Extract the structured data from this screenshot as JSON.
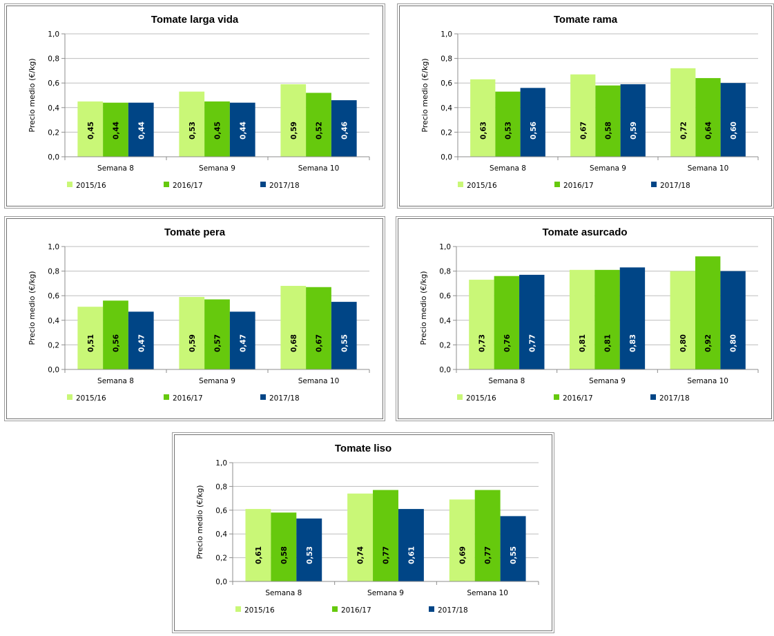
{
  "colors": {
    "2015/16": "#c9f777",
    "2016/17": "#66c90d",
    "2017/18": "#004586"
  },
  "chart_data": [
    {
      "type": "bar",
      "title": "Tomate larga vida",
      "ylabel": "Precio medio (€/kg)",
      "ylim": [
        0,
        1.0
      ],
      "yticks": [
        "0,0",
        "0,2",
        "0,4",
        "0,6",
        "0,8",
        "1,0"
      ],
      "categories": [
        "Semana 8",
        "Semana 9",
        "Semana 10"
      ],
      "series": [
        {
          "name": "2015/16",
          "values": [
            0.45,
            0.53,
            0.59
          ],
          "labels": [
            "0,45",
            "0,53",
            "0,59"
          ]
        },
        {
          "name": "2016/17",
          "values": [
            0.44,
            0.45,
            0.52
          ],
          "labels": [
            "0,44",
            "0,45",
            "0,52"
          ]
        },
        {
          "name": "2017/18",
          "values": [
            0.44,
            0.44,
            0.46
          ],
          "labels": [
            "0,44",
            "0,44",
            "0,46"
          ]
        }
      ],
      "grid": true,
      "legend": "bottom"
    },
    {
      "type": "bar",
      "title": "Tomate rama",
      "ylabel": "Precio medio (€/kg)",
      "ylim": [
        0,
        1.0
      ],
      "yticks": [
        "0,0",
        "0,2",
        "0,4",
        "0,6",
        "0,8",
        "1,0"
      ],
      "categories": [
        "Semana 8",
        "Semana 9",
        "Semana 10"
      ],
      "series": [
        {
          "name": "2015/16",
          "values": [
            0.63,
            0.67,
            0.72
          ],
          "labels": [
            "0,63",
            "0,67",
            "0,72"
          ]
        },
        {
          "name": "2016/17",
          "values": [
            0.53,
            0.58,
            0.64
          ],
          "labels": [
            "0,53",
            "0,58",
            "0,64"
          ]
        },
        {
          "name": "2017/18",
          "values": [
            0.56,
            0.59,
            0.6
          ],
          "labels": [
            "0,56",
            "0,59",
            "0,60"
          ]
        }
      ],
      "grid": true,
      "legend": "bottom"
    },
    {
      "type": "bar",
      "title": "Tomate pera",
      "ylabel": "Precio medio (€/kg)",
      "ylim": [
        0,
        1.0
      ],
      "yticks": [
        "0,0",
        "0,2",
        "0,4",
        "0,6",
        "0,8",
        "1,0"
      ],
      "categories": [
        "Semana 8",
        "Semana 9",
        "Semana 10"
      ],
      "series": [
        {
          "name": "2015/16",
          "values": [
            0.51,
            0.59,
            0.68
          ],
          "labels": [
            "0,51",
            "0,59",
            "0,68"
          ]
        },
        {
          "name": "2016/17",
          "values": [
            0.56,
            0.57,
            0.67
          ],
          "labels": [
            "0,56",
            "0,57",
            "0,67"
          ]
        },
        {
          "name": "2017/18",
          "values": [
            0.47,
            0.47,
            0.55
          ],
          "labels": [
            "0,47",
            "0,47",
            "0,55"
          ]
        }
      ],
      "grid": true,
      "legend": "bottom"
    },
    {
      "type": "bar",
      "title": "Tomate asurcado",
      "ylabel": "Precio medio (€/kg)",
      "ylim": [
        0,
        1.0
      ],
      "yticks": [
        "0,0",
        "0,2",
        "0,4",
        "0,6",
        "0,8",
        "1,0"
      ],
      "categories": [
        "Semana 8",
        "Semana 9",
        "Semana 10"
      ],
      "series": [
        {
          "name": "2015/16",
          "values": [
            0.73,
            0.81,
            0.8
          ],
          "labels": [
            "0,73",
            "0,81",
            "0,80"
          ]
        },
        {
          "name": "2016/17",
          "values": [
            0.76,
            0.81,
            0.92
          ],
          "labels": [
            "0,76",
            "0,81",
            "0,92"
          ]
        },
        {
          "name": "2017/18",
          "values": [
            0.77,
            0.83,
            0.8
          ],
          "labels": [
            "0,77",
            "0,83",
            "0,80"
          ]
        }
      ],
      "grid": true,
      "legend": "bottom"
    },
    {
      "type": "bar",
      "title": "Tomate liso",
      "ylabel": "Precio medio (€/kg)",
      "ylim": [
        0,
        1.0
      ],
      "yticks": [
        "0,0",
        "0,2",
        "0,4",
        "0,6",
        "0,8",
        "1,0"
      ],
      "categories": [
        "Semana 8",
        "Semana 9",
        "Semana 10"
      ],
      "series": [
        {
          "name": "2015/16",
          "values": [
            0.61,
            0.74,
            0.69
          ],
          "labels": [
            "0,61",
            "0,74",
            "0,69"
          ]
        },
        {
          "name": "2016/17",
          "values": [
            0.58,
            0.77,
            0.77
          ],
          "labels": [
            "0,58",
            "0,77",
            "0,77"
          ]
        },
        {
          "name": "2017/18",
          "values": [
            0.53,
            0.61,
            0.55
          ],
          "labels": [
            "0,53",
            "0,61",
            "0,55"
          ]
        }
      ],
      "grid": true,
      "legend": "bottom"
    }
  ]
}
